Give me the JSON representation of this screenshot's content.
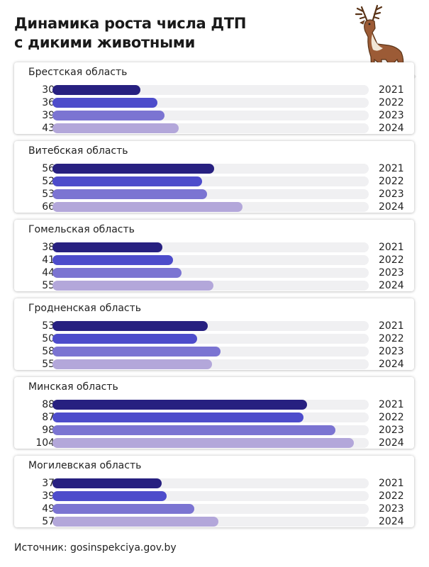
{
  "title": {
    "line1": "Динамика роста числа ДТП",
    "line2": "с дикими животными"
  },
  "source": "Источник: gosinspekciya.gov.by",
  "colors": {
    "2021": "#272080",
    "2022": "#4d4ccb",
    "2023": "#7b74d2",
    "2024": "#b3a7da",
    "track": "#f0f0f2"
  },
  "chart_data": {
    "type": "bar",
    "orientation": "horizontal",
    "title": "Динамика роста числа ДТП с дикими животными",
    "xlim": [
      0,
      1100
    ],
    "years": [
      "2021",
      "2022",
      "2023",
      "2024"
    ],
    "regions": [
      {
        "name": "Брестская область",
        "values": [
          305,
          366,
          390,
          438
        ]
      },
      {
        "name": "Витебская область",
        "values": [
          562,
          520,
          538,
          661
        ]
      },
      {
        "name": "Гомельская область",
        "values": [
          382,
          419,
          448,
          559
        ]
      },
      {
        "name": "Гродненская область",
        "values": [
          539,
          504,
          585,
          554
        ]
      },
      {
        "name": "Минская область",
        "values": [
          886,
          874,
          984,
          1047
        ]
      },
      {
        "name": "Могилевская область",
        "values": [
          379,
          397,
          494,
          576
        ]
      }
    ]
  }
}
